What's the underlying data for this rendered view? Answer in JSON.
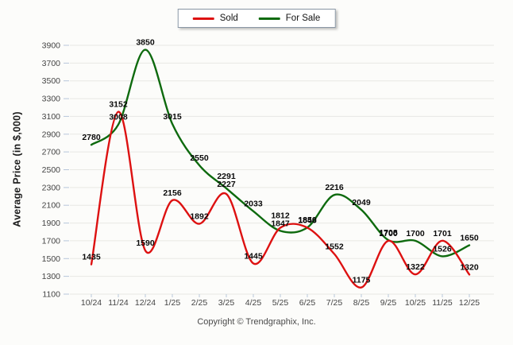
{
  "footer": {
    "copyright": "Copyright © Trendgraphix, Inc."
  },
  "legend": {
    "items": [
      {
        "label": "Sold",
        "color": "#dd1111"
      },
      {
        "label": "For Sale",
        "color": "#0e6a0e"
      }
    ]
  },
  "chart_data": {
    "type": "line",
    "title": "",
    "xlabel": "",
    "ylabel": "Average Price (in $,000)",
    "categories": [
      "10/24",
      "11/24",
      "12/24",
      "1/25",
      "2/25",
      "3/25",
      "4/25",
      "5/25",
      "6/25",
      "7/25",
      "8/25",
      "9/25",
      "10/25",
      "11/25",
      "12/25"
    ],
    "series": [
      {
        "name": "Sold",
        "color": "#dd1111",
        "values": [
          1435,
          3152,
          1590,
          2156,
          1892,
          2227,
          1445,
          1847,
          1848,
          1552,
          1175,
          1700,
          1322,
          1701,
          1320
        ]
      },
      {
        "name": "For Sale",
        "color": "#0e6a0e",
        "values": [
          2780,
          3008,
          3850,
          3015,
          2550,
          2291,
          2033,
          1812,
          1850,
          2216,
          2049,
          1708,
          1700,
          1526,
          1650
        ]
      }
    ],
    "ylim": [
      1100,
      3900
    ],
    "ytick_step": 200,
    "grid": "horizontal",
    "legend_position": "top-center",
    "point_labels": true
  }
}
